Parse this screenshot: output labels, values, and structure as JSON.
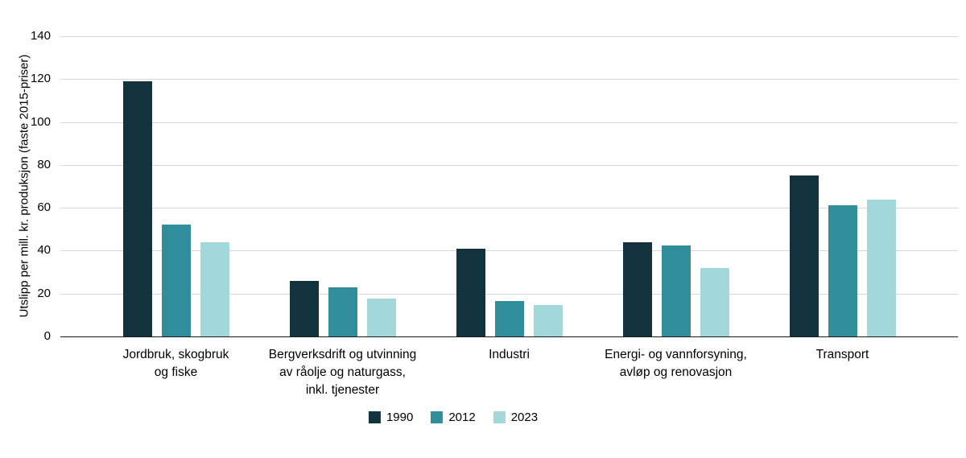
{
  "chart_data": {
    "type": "bar",
    "title": "",
    "xlabel": "",
    "ylabel": "Utslipp per mill. kr. produksjon (faste 2015-priser)",
    "ylim": [
      0,
      140
    ],
    "yticks": [
      0,
      20,
      40,
      60,
      80,
      100,
      120,
      140
    ],
    "grid": true,
    "legend_position": "bottom",
    "categories": [
      "Jordbruk, skogbruk og fiske",
      "Bergverksdrift og utvinning av råolje og naturgass, inkl. tjenester",
      "Industri",
      "Energi- og vannforsyning, avløp og renovasjon",
      "Transport"
    ],
    "category_label_lines": [
      [
        "Jordbruk, skogbruk",
        "og fiske"
      ],
      [
        "Bergverksdrift og utvinning",
        "av råolje og naturgass,",
        "inkl. tjenester"
      ],
      [
        "Industri"
      ],
      [
        "Energi- og vannforsyning,",
        "avløp og renovasjon"
      ],
      [
        "Transport"
      ]
    ],
    "series": [
      {
        "name": "1990",
        "color": "#12333e",
        "values": [
          119,
          26,
          41,
          44,
          75
        ]
      },
      {
        "name": "2012",
        "color": "#2f8e9a",
        "values": [
          52,
          23,
          16.5,
          42.5,
          61
        ]
      },
      {
        "name": "2023",
        "color": "#a3d8db",
        "values": [
          44,
          17.5,
          14.5,
          32,
          64
        ]
      }
    ],
    "colors": {
      "gridline": "#d7d7d7",
      "axis_line": "#1a1a1a",
      "background": "#ffffff"
    }
  }
}
